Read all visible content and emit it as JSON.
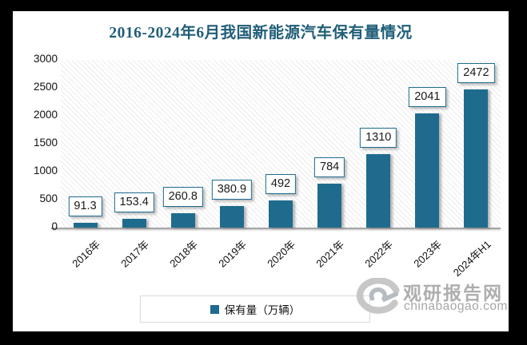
{
  "window": {
    "background_color": "#000000",
    "card_color": "#ffffff"
  },
  "title_color": "#205e78",
  "chart_data": {
    "type": "bar",
    "title": "2016-2024年6月我国新能源汽车保有量情况",
    "categories": [
      "2016年",
      "2017年",
      "2018年",
      "2019年",
      "2020年",
      "2021年",
      "2022年",
      "2023年",
      "2024年H1"
    ],
    "values": [
      91.3,
      153.4,
      260.8,
      380.9,
      492,
      784,
      1310,
      2041,
      2472
    ],
    "data_labels": [
      "91.3",
      "153.4",
      "260.8",
      "380.9",
      "492",
      "784",
      "1310",
      "2041",
      "2472"
    ],
    "series_name": "保有量（万辆）",
    "xlabel": "",
    "ylabel": "",
    "ylim": [
      0,
      3000
    ],
    "yticks": [
      0,
      500,
      1000,
      1500,
      2000,
      2500,
      3000
    ],
    "grid": false,
    "legend_position": "bottom",
    "bar_color": "#1f6b8e",
    "plot_background": "diagonal-hatch"
  },
  "legend": {
    "label": "保有量（万辆）",
    "swatch_color": "#1f6b8e"
  },
  "watermark": {
    "logo": "swirl-g-logo",
    "site_name": "观研报告网",
    "site_url": "chinabaogao.com"
  }
}
